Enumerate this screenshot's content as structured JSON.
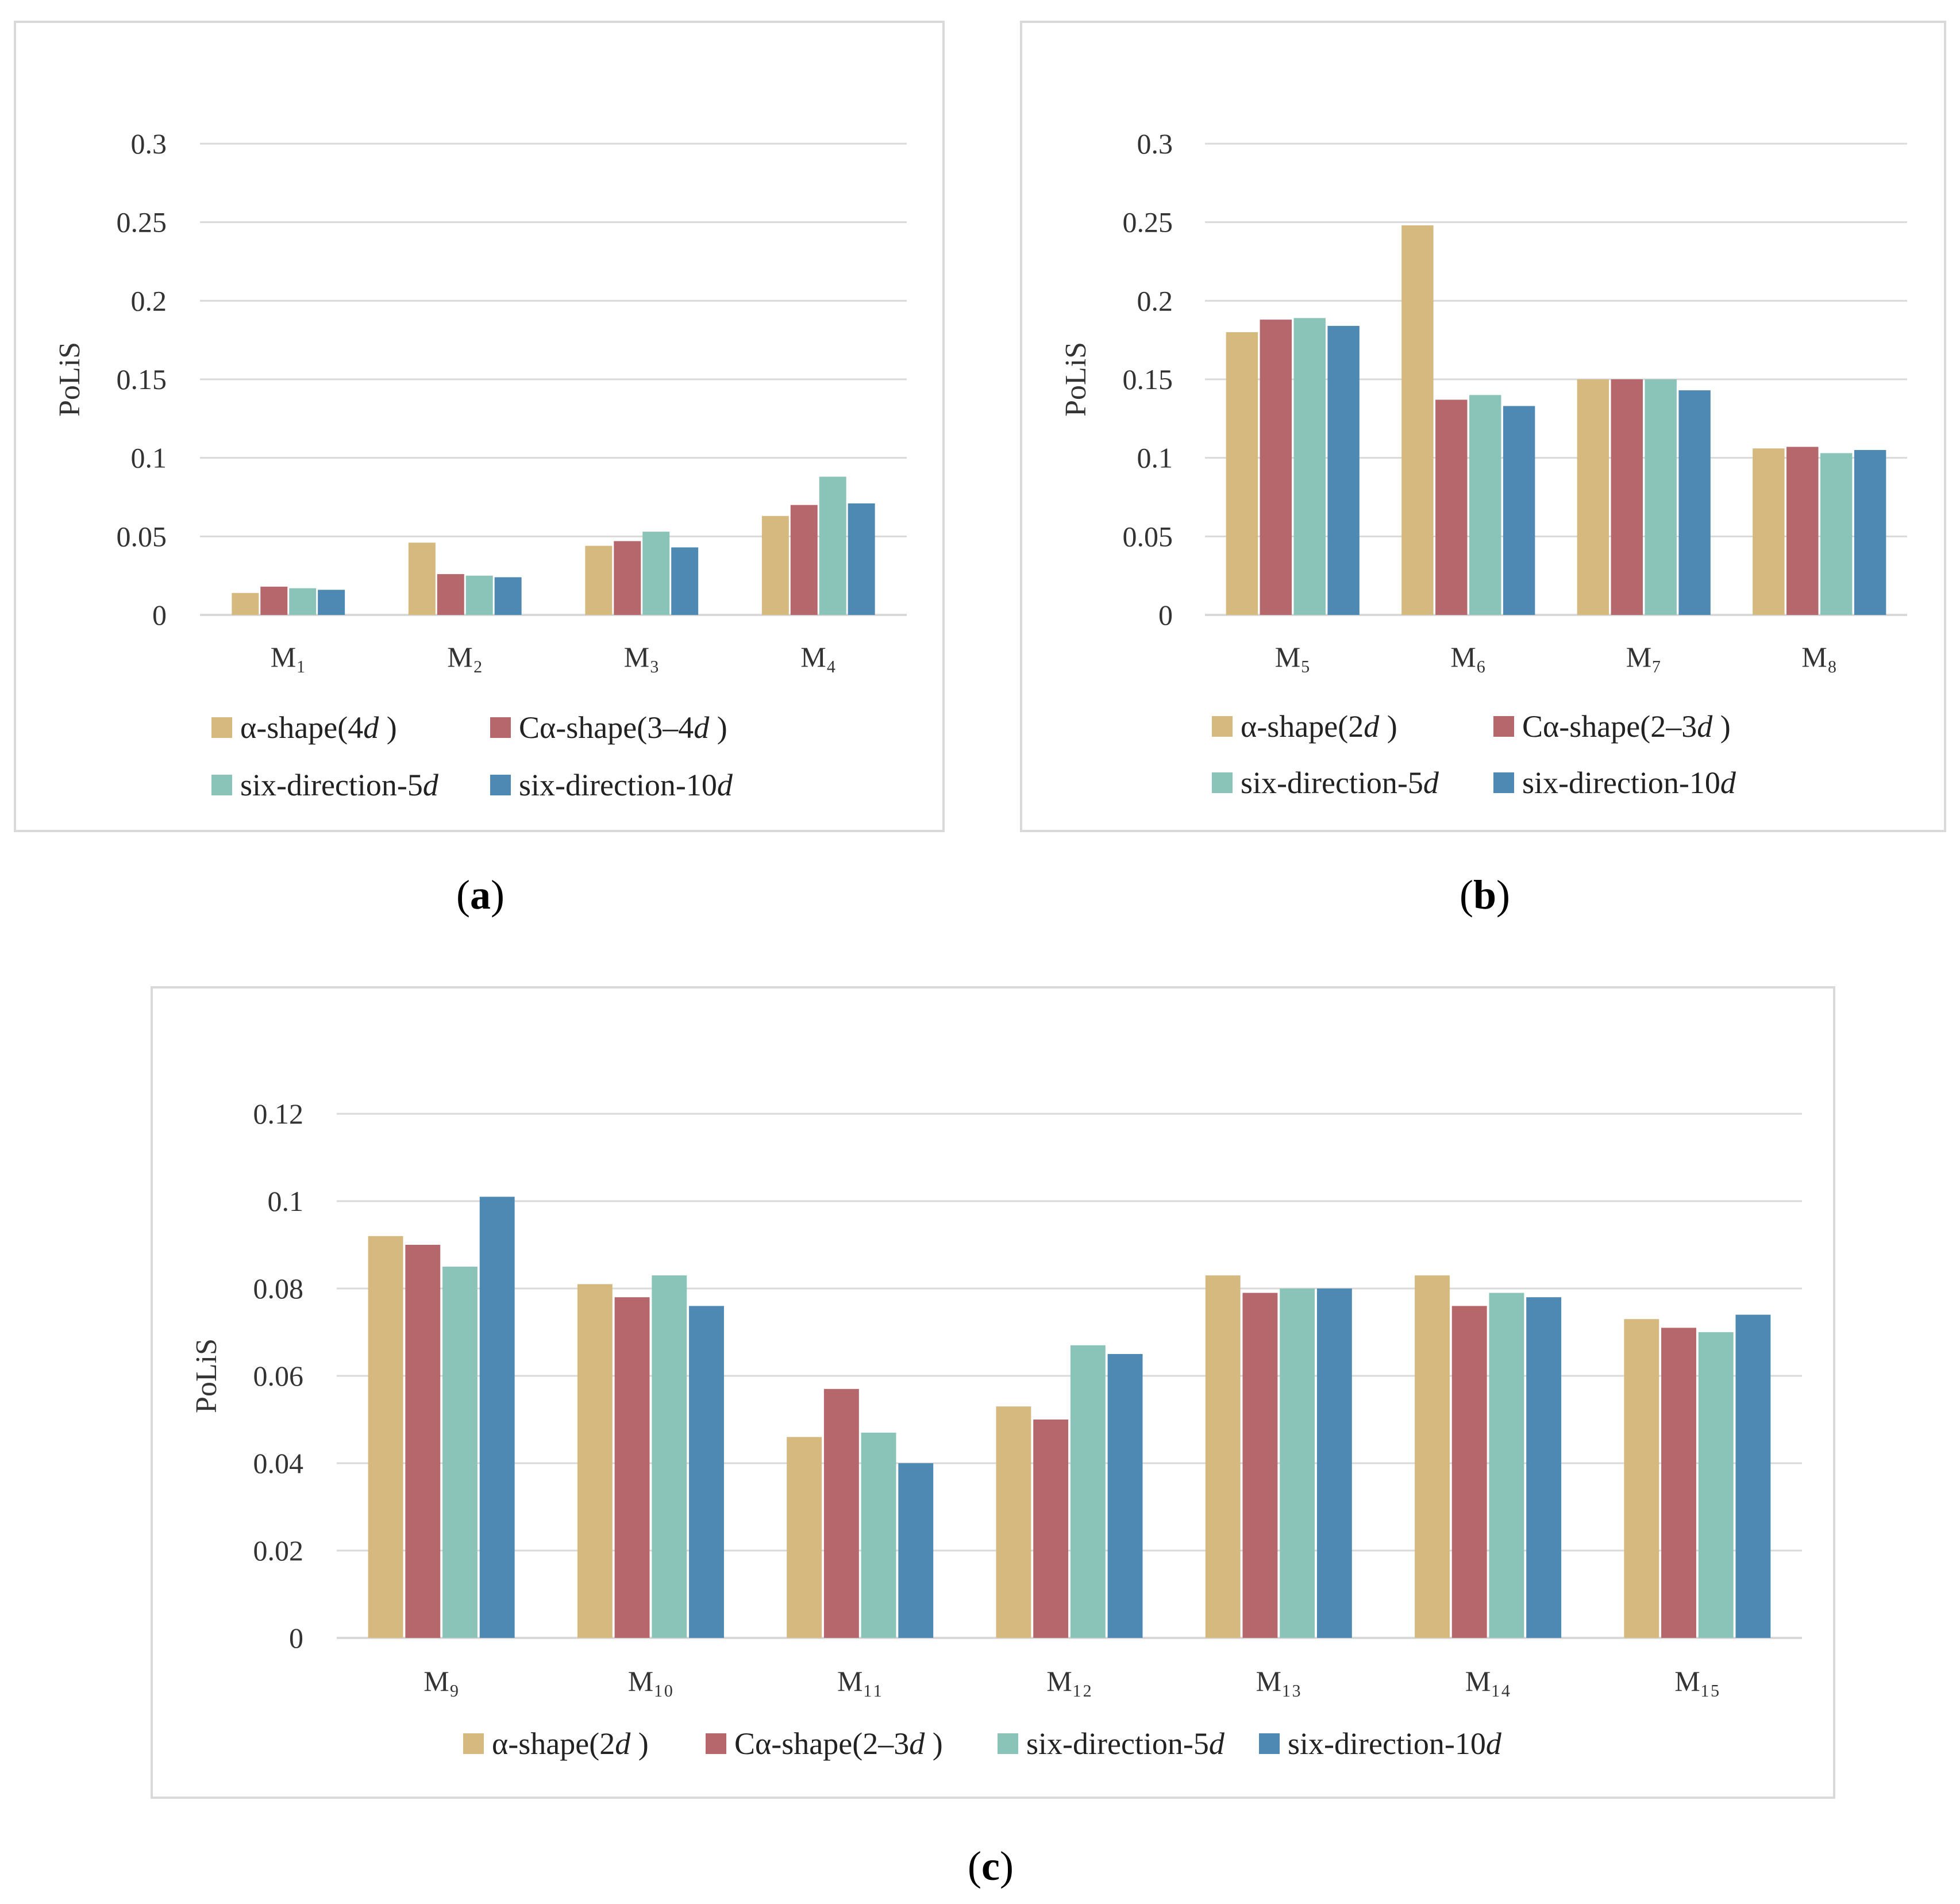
{
  "colors": {
    "alpha": "#d6b97e",
    "calpha": "#b5676b",
    "six5": "#8ac4b8",
    "six10": "#4e89b4",
    "grid": "#d9d9d9"
  },
  "captions": {
    "a": "a",
    "b": "b",
    "c": "c"
  },
  "chart_data": [
    {
      "id": "a",
      "type": "bar",
      "ylabel": "PoLiS",
      "ylim": [
        0,
        0.3
      ],
      "yticks": [
        "0",
        "0.05",
        "0.1",
        "0.15",
        "0.2",
        "0.25",
        "0.3"
      ],
      "categories": [
        "M₁",
        "M₂",
        "M₃",
        "M₄"
      ],
      "legend_position": "bottom",
      "series": [
        {
          "name": "α-shape(4d )",
          "color_key": "alpha",
          "values": [
            0.014,
            0.046,
            0.044,
            0.063
          ]
        },
        {
          "name": "Cα-shape(3–4d )",
          "color_key": "calpha",
          "values": [
            0.018,
            0.026,
            0.047,
            0.07
          ]
        },
        {
          "name": "six-direction-5d",
          "color_key": "six5",
          "values": [
            0.017,
            0.025,
            0.053,
            0.088
          ]
        },
        {
          "name": "six-direction-10d",
          "color_key": "six10",
          "values": [
            0.016,
            0.024,
            0.043,
            0.071
          ]
        }
      ]
    },
    {
      "id": "b",
      "type": "bar",
      "ylabel": "PoLiS",
      "ylim": [
        0,
        0.3
      ],
      "yticks": [
        "0",
        "0.05",
        "0.1",
        "0.15",
        "0.2",
        "0.25",
        "0.3"
      ],
      "categories": [
        "M₅",
        "M₆",
        "M₇",
        "M₈"
      ],
      "legend_position": "bottom",
      "series": [
        {
          "name": "α-shape(2d )",
          "color_key": "alpha",
          "values": [
            0.18,
            0.248,
            0.15,
            0.106
          ]
        },
        {
          "name": "Cα-shape(2–3d )",
          "color_key": "calpha",
          "values": [
            0.188,
            0.137,
            0.15,
            0.107
          ]
        },
        {
          "name": "six-direction-5d",
          "color_key": "six5",
          "values": [
            0.189,
            0.14,
            0.15,
            0.103
          ]
        },
        {
          "name": "six-direction-10d",
          "color_key": "six10",
          "values": [
            0.184,
            0.133,
            0.143,
            0.105
          ]
        }
      ]
    },
    {
      "id": "c",
      "type": "bar",
      "ylabel": "PoLiS",
      "ylim": [
        0,
        0.12
      ],
      "yticks": [
        "0",
        "0.02",
        "0.04",
        "0.06",
        "0.08",
        "0.1",
        "0.12"
      ],
      "categories": [
        "M₉",
        "M₁₀",
        "M₁₁",
        "M₁₂",
        "M₁₃",
        "M₁₄",
        "M₁₅"
      ],
      "legend_position": "bottom",
      "series": [
        {
          "name": "α-shape(2d )",
          "color_key": "alpha",
          "values": [
            0.092,
            0.081,
            0.046,
            0.053,
            0.083,
            0.083,
            0.073
          ]
        },
        {
          "name": "Cα-shape(2–3d )",
          "color_key": "calpha",
          "values": [
            0.09,
            0.078,
            0.057,
            0.05,
            0.079,
            0.076,
            0.071
          ]
        },
        {
          "name": "six-direction-5d",
          "color_key": "six5",
          "values": [
            0.085,
            0.083,
            0.047,
            0.067,
            0.08,
            0.079,
            0.07
          ]
        },
        {
          "name": "six-direction-10d",
          "color_key": "six10",
          "values": [
            0.101,
            0.076,
            0.04,
            0.065,
            0.08,
            0.078,
            0.074
          ]
        }
      ]
    }
  ]
}
